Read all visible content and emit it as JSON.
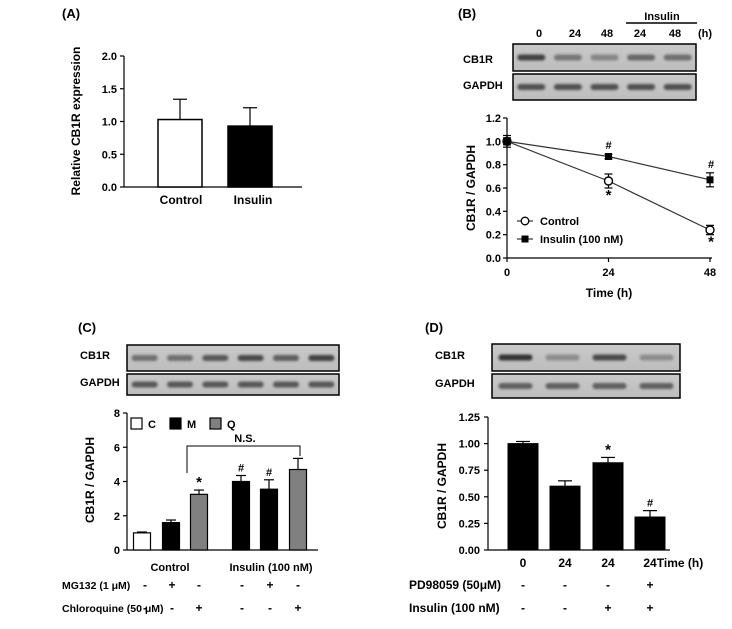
{
  "panels": {
    "A": {
      "tag": "(A)",
      "chart_data": {
        "type": "bar",
        "categories": [
          "Control",
          "Insulin"
        ],
        "values": [
          1.03,
          0.93
        ],
        "errors": [
          0.31,
          0.28
        ],
        "fills": [
          "#ffffff",
          "#000000"
        ],
        "ylabel": "Relative CB1R expression",
        "ylim": [
          0,
          2.0
        ],
        "yticks": [
          "0.0",
          "0.5",
          "1.0",
          "1.5",
          "2.0"
        ]
      }
    },
    "B": {
      "tag": "(B)",
      "blot": {
        "lanes": [
          "0",
          "24",
          "48",
          "24",
          "48"
        ],
        "unit": "(h)",
        "group_label": "Insulin",
        "rows": [
          "CB1R",
          "GAPDH"
        ]
      },
      "chart_data": {
        "type": "line",
        "x": [
          0,
          24,
          48
        ],
        "xticks": [
          "0",
          "24",
          "48"
        ],
        "xlabel": "Time (h)",
        "ylabel": "CB1R / GAPDH",
        "ylim": [
          0,
          1.2
        ],
        "yticks": [
          "0.0",
          "0.2",
          "0.4",
          "0.6",
          "0.8",
          "1.0",
          "1.2"
        ],
        "series": [
          {
            "name": "Control",
            "values": [
              1.0,
              0.66,
              0.24
            ],
            "errors": [
              0.05,
              0.06,
              0.04
            ],
            "marker": "open-circle",
            "marks": [
              "",
              "*",
              "*"
            ]
          },
          {
            "name": "Insulin (100 nM)",
            "values": [
              1.0,
              0.87,
              0.67
            ],
            "errors": [
              0.03,
              0.02,
              0.06
            ],
            "marker": "filled-square",
            "marks": [
              "",
              "#",
              "#"
            ]
          }
        ]
      }
    },
    "C": {
      "tag": "(C)",
      "blot": {
        "rows": [
          "CB1R",
          "GAPDH"
        ]
      },
      "chart_data": {
        "type": "bar",
        "groups": [
          "Control",
          "Insulin (100 nM)"
        ],
        "legend": [
          "C",
          "M",
          "Q"
        ],
        "legend_fills": [
          "#ffffff",
          "#000000",
          "#808080"
        ],
        "values": [
          1.0,
          1.6,
          3.25,
          4.0,
          3.55,
          4.7
        ],
        "errors": [
          0.05,
          0.15,
          0.25,
          0.35,
          0.55,
          0.65
        ],
        "marks": [
          "",
          "",
          "*",
          "#",
          "#",
          ""
        ],
        "bracket_label": "N.S.",
        "ylabel": "CB1R / GAPDH",
        "ylim": [
          0,
          8
        ],
        "yticks": [
          "0",
          "2",
          "4",
          "6",
          "8"
        ],
        "conditions": [
          {
            "label": "MG132 (1 μM)",
            "signs": [
              "-",
              "+",
              "-",
              "-",
              "+",
              "-"
            ]
          },
          {
            "label": "Chloroquine (50 μM)",
            "signs": [
              "-",
              "-",
              "+",
              "-",
              "-",
              "+"
            ]
          }
        ]
      }
    },
    "D": {
      "tag": "(D)",
      "blot": {
        "rows": [
          "CB1R",
          "GAPDH"
        ]
      },
      "chart_data": {
        "type": "bar",
        "categories": [
          "0",
          "24",
          "24",
          "24"
        ],
        "xunit": "Time (h)",
        "values": [
          1.0,
          0.6,
          0.82,
          0.31
        ],
        "errors": [
          0.02,
          0.05,
          0.05,
          0.06
        ],
        "marks": [
          "",
          "",
          "*",
          "#"
        ],
        "ylabel": "CB1R / GAPDH",
        "ylim": [
          0,
          1.25
        ],
        "yticks": [
          "0.00",
          "0.25",
          "0.50",
          "0.75",
          "1.00",
          "1.25"
        ],
        "conditions": [
          {
            "label": "PD98059 (50μM)",
            "signs": [
              "-",
              "-",
              "-",
              "+"
            ]
          },
          {
            "label": "Insulin (100 nM)",
            "signs": [
              "-",
              "-",
              "+",
              "+"
            ]
          }
        ]
      }
    }
  }
}
